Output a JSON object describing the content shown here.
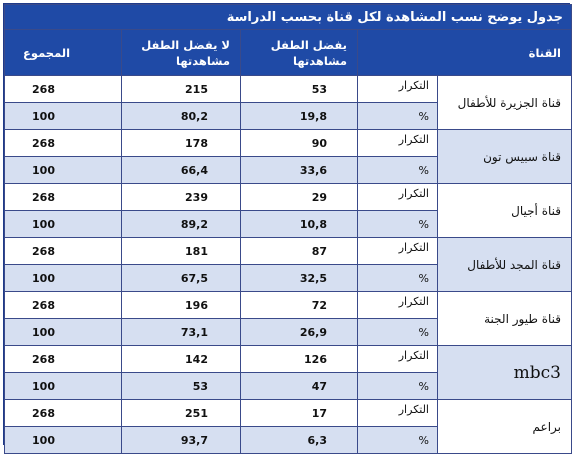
{
  "table": {
    "title": "جدول يوضح نسب المشاهدة لكل قناة بحسب الدراسة",
    "headers": {
      "channel": "القناة",
      "prefer": "يفضل الطفل مشاهدتها",
      "not_prefer": "لا يفضل الطفل مشاهدتها",
      "total": "المجموع"
    },
    "rows": [
      {
        "channel": "قناة الجزيرة للأطفال",
        "freq_label": "التكرار",
        "pct_label": "%",
        "freq": [
          "53",
          "215",
          "268"
        ],
        "pct": [
          "19,8",
          "80,2",
          "100"
        ]
      },
      {
        "channel": "قناة سبيس تون",
        "freq_label": "التكرار",
        "pct_label": "%",
        "freq": [
          "90",
          "178",
          "268"
        ],
        "pct": [
          "33,6",
          "66,4",
          "100"
        ]
      },
      {
        "channel": "قناة أجيال",
        "freq_label": "التكرار",
        "pct_label": "%",
        "freq": [
          "29",
          "239",
          "268"
        ],
        "pct": [
          "10,8",
          "89,2",
          "100"
        ]
      },
      {
        "channel": "قناة المجد للأطفال",
        "freq_label": "التكرار",
        "pct_label": "%",
        "freq": [
          "87",
          "181",
          "268"
        ],
        "pct": [
          "32,5",
          "67,5",
          "100"
        ]
      },
      {
        "channel": "قناة طيور الجنة",
        "freq_label": "التكرار",
        "pct_label": "%",
        "freq": [
          "72",
          "196",
          "268"
        ],
        "pct": [
          "26,9",
          "73,1",
          "100"
        ]
      },
      {
        "channel": "mbc3",
        "freq_label": "التكرار",
        "pct_label": "%",
        "freq": [
          "126",
          "142",
          "268"
        ],
        "pct": [
          "47",
          "53",
          "100"
        ]
      },
      {
        "channel": "براعم",
        "freq_label": "التكرار",
        "pct_label": "%",
        "freq": [
          "17",
          "251",
          "268"
        ],
        "pct": [
          "6,3",
          "93,7",
          "100"
        ]
      }
    ]
  },
  "colors": {
    "header_bg": "#1f4aa6",
    "header_text": "#ffffff",
    "alt_row": "#d6dff1",
    "border": "#3a4a8a"
  }
}
